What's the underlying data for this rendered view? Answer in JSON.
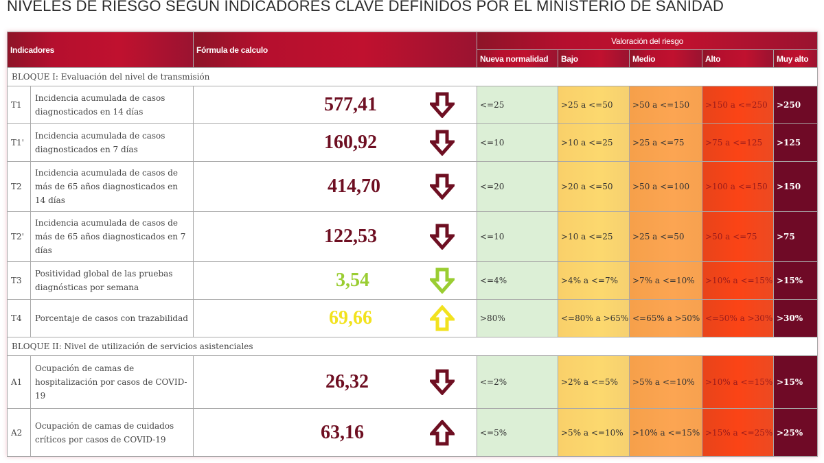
{
  "title": "NIVELES DE RIESGO SEGÚN INDICADORES CLAVE DEFINIDOS POR EL MINISTERIO DE SANIDAD",
  "header": {
    "indicadores": "Indicadores",
    "formula": "Fórmula de calculo",
    "valoracion": "Valoración del riesgo",
    "levels": [
      "Nueva normalidad",
      "Bajo",
      "Medio",
      "Alto",
      "Muy alto"
    ]
  },
  "colors": {
    "header_red": "#c0112f",
    "nueva_normalidad": "#dcefd6",
    "bajo": "#fcd86e",
    "medio": "#fca552",
    "alto": "#fb4416",
    "muy_alto": "#6f0a26",
    "value_dark_red": "#6e0f22",
    "value_green": "#9acd32",
    "value_yellow": "#f2e21f"
  },
  "blocks": [
    {
      "label": "BLOQUE I: Evaluación del nivel de transmisión",
      "rows": [
        {
          "code": "T1",
          "desc": "Incidencia acumulada de casos diagnosticados en 14 días",
          "value": "577,41",
          "trend": "down",
          "color": "#6e0f22",
          "ranges": [
            "<=25",
            ">25 a <=50",
            ">50 a <=150",
            ">150 a <=250",
            ">250"
          ]
        },
        {
          "code": "T1'",
          "desc": "Incidencia acumulada de casos diagnosticados en 7 días",
          "value": "160,92",
          "trend": "down",
          "color": "#6e0f22",
          "ranges": [
            "<=10",
            ">10 a <=25",
            ">25 a <=75",
            ">75 a <=125",
            ">125"
          ]
        },
        {
          "code": "T2",
          "desc": "Incidencia acumulada de casos de más de 65 años diagnosticados en 14 días",
          "value": "414,70",
          "trend": "down",
          "color": "#6e0f22",
          "ranges": [
            "<=20",
            ">20 a <=50",
            ">50 a <=100",
            ">100 a <=150",
            ">150"
          ]
        },
        {
          "code": "T2'",
          "desc": "Incidencia acumulada de casos de más de 65 años diagnosticados en 7 días",
          "value": "122,53",
          "trend": "down",
          "color": "#6e0f22",
          "ranges": [
            "<=10",
            ">10 a <=25",
            ">25 a <=50",
            ">50 a <=75",
            ">75"
          ]
        },
        {
          "code": "T3",
          "desc": "Positividad global de las pruebas diagnósticas por semana",
          "value": "3,54",
          "trend": "down",
          "color": "#9acd32",
          "ranges": [
            "<=4%",
            ">4% a <=7%",
            ">7% a <=10%",
            ">10% a <=15%",
            ">15%"
          ]
        },
        {
          "code": "T4",
          "desc": "Porcentaje de casos con trazabilidad",
          "value": "69,66",
          "trend": "up",
          "color": "#f2e21f",
          "ranges": [
            ">80%",
            "<=80% a >65%",
            "<=65% a >50%",
            "<=50% a >30%",
            ">30%"
          ]
        }
      ]
    },
    {
      "label": "BLOQUE II: Nivel de utilización de servicios asistenciales",
      "rows": [
        {
          "code": "A1",
          "desc": "Ocupación de camas de hospitalización por casos de COVID-19",
          "value": "26,32",
          "trend": "down",
          "color": "#6e0f22",
          "ranges": [
            "<=2%",
            ">2% a <=5%",
            ">5% a <=10%",
            ">10% a <=15%",
            ">15%"
          ]
        },
        {
          "code": "A2",
          "desc": "Ocupación de camas de cuidados críticos por casos de COVID-19",
          "value": "63,16",
          "trend": "up",
          "color": "#6e0f22",
          "ranges": [
            "<=5%",
            ">5% a <=10%",
            ">10% a <=15%",
            ">15% a <=25%",
            ">25%"
          ]
        }
      ]
    }
  ],
  "icons": {
    "down": "arrow-down-outline-icon",
    "up": "arrow-up-outline-icon"
  }
}
